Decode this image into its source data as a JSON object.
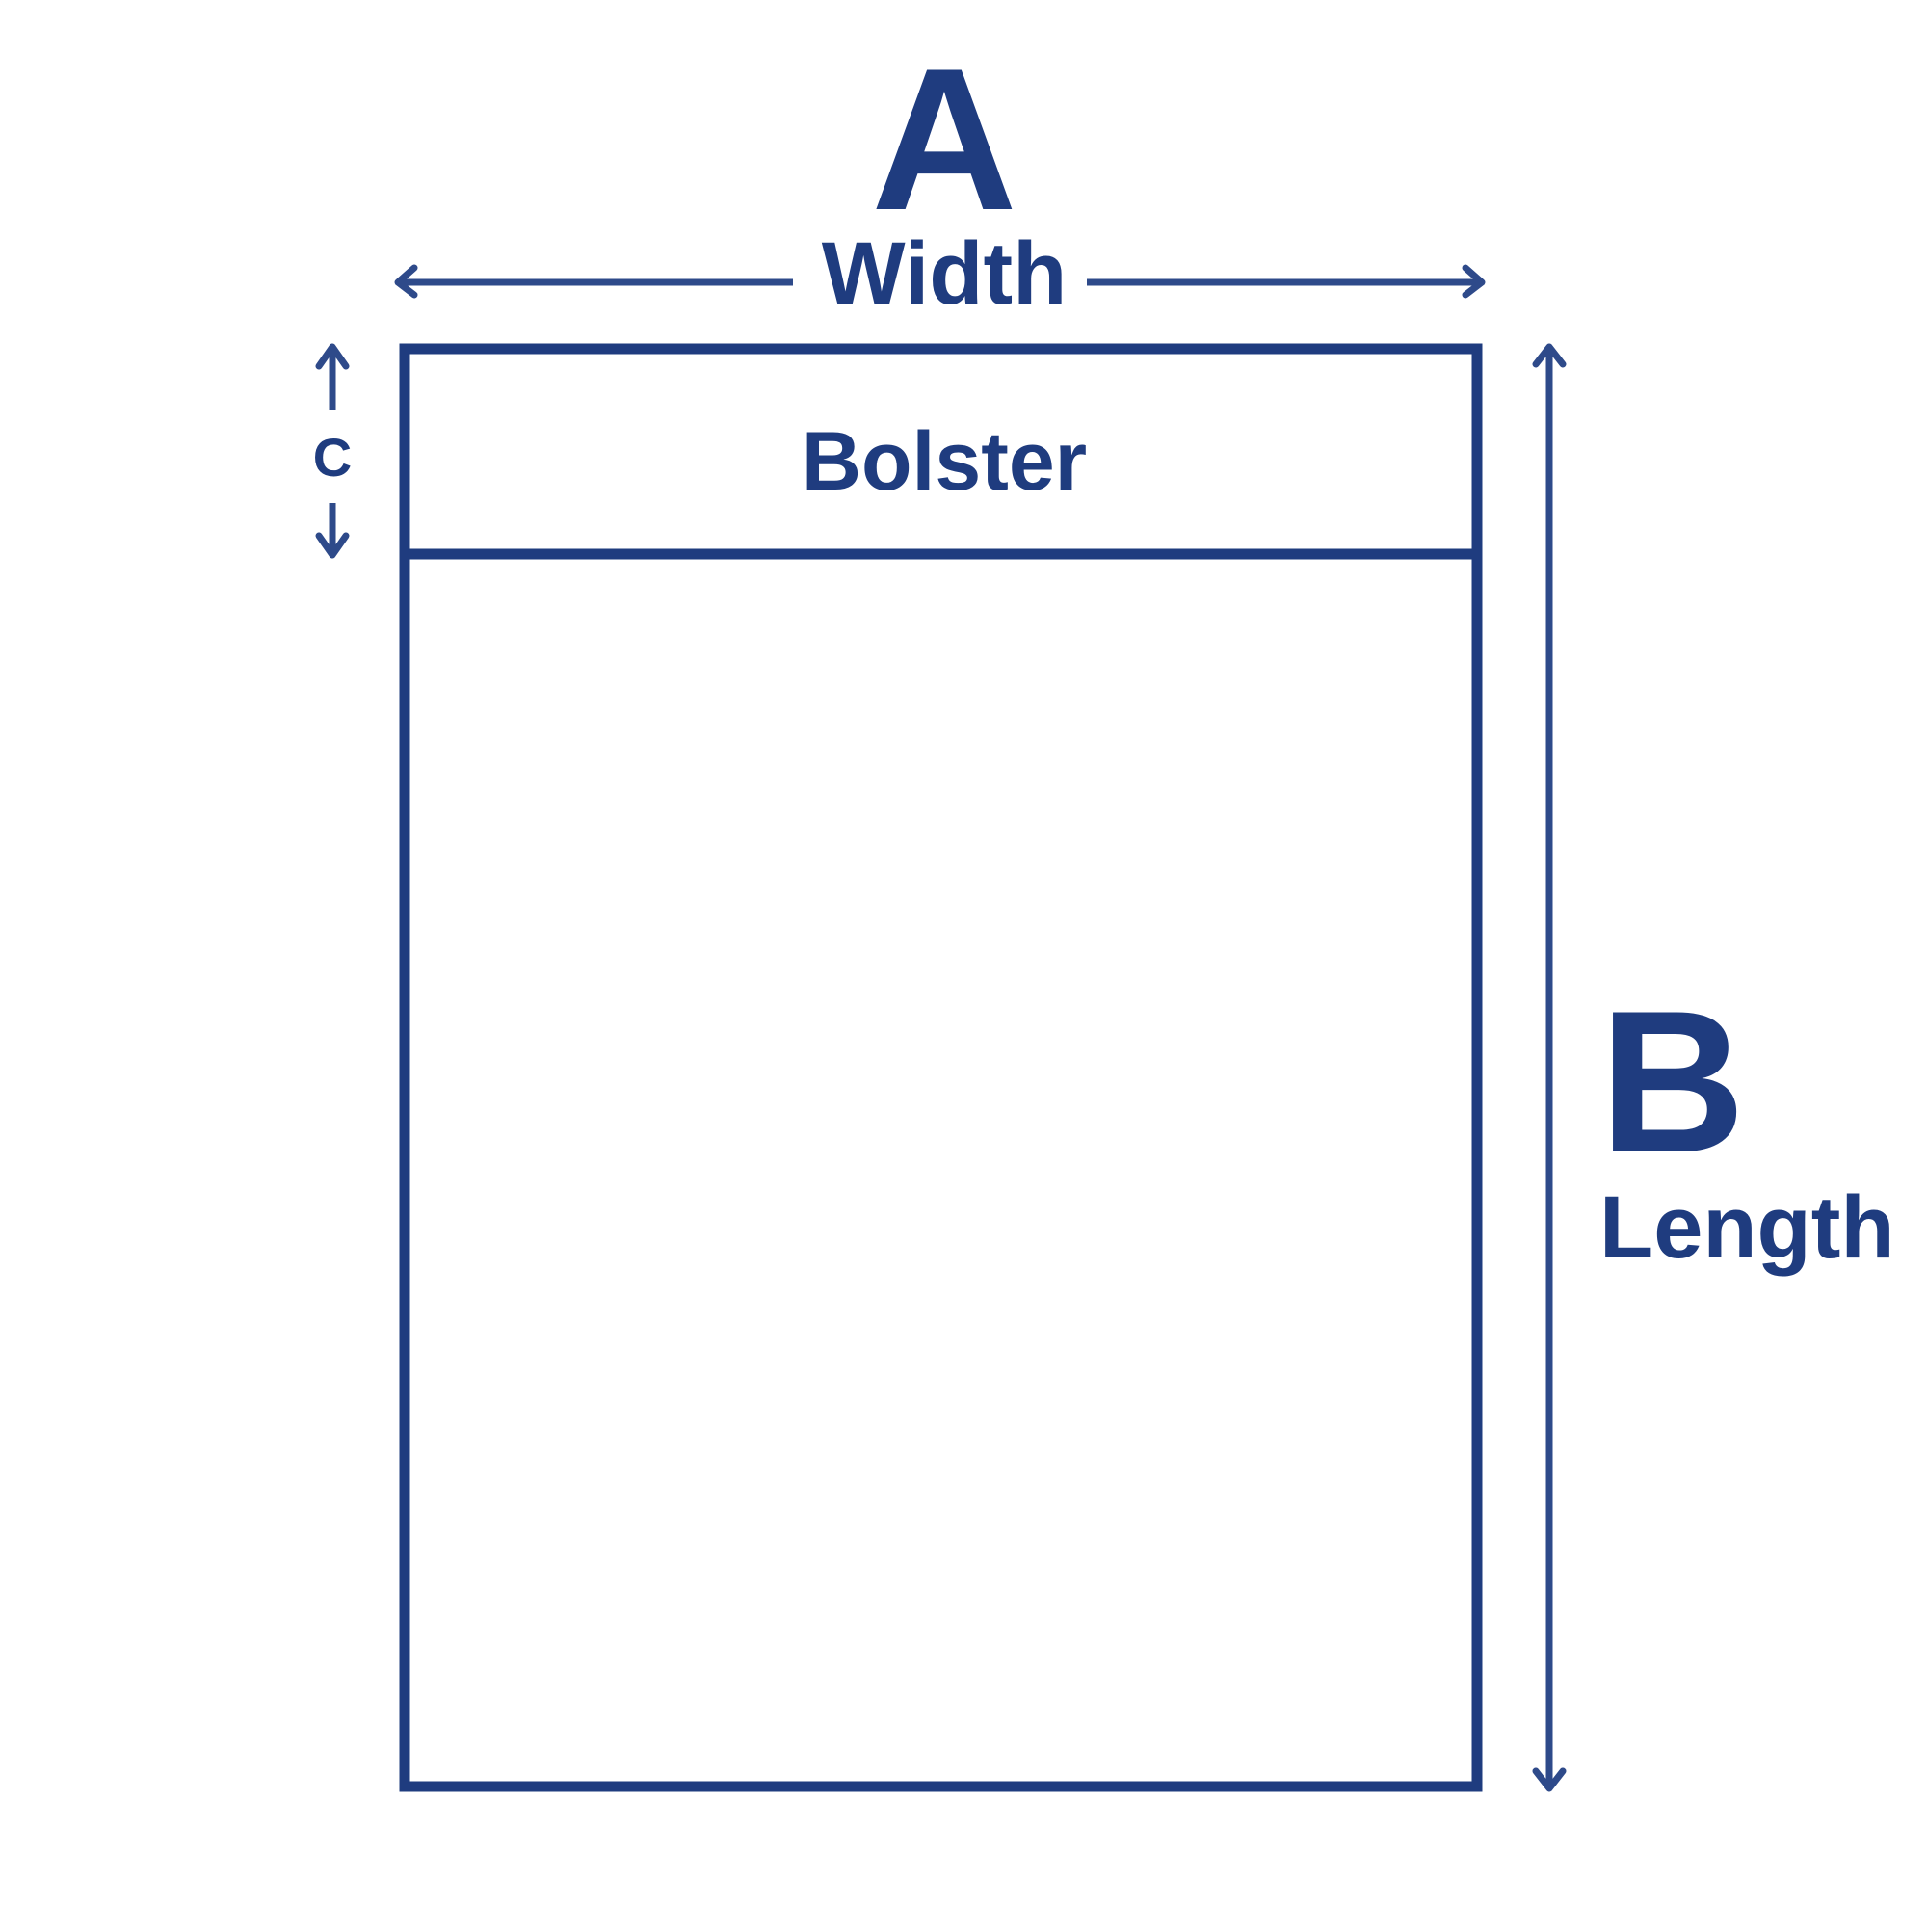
{
  "diagram": {
    "accent_color": "#1f3c7f",
    "arrow_color": "#2e4a8a",
    "labels": {
      "a": "A",
      "width": "Width",
      "bolster": "Bolster",
      "c": "C",
      "b": "B",
      "length": "Length"
    },
    "shapes": {
      "outer": "rectangle",
      "divider": "horizontal-line",
      "arrows": [
        "width-arrow",
        "c-arrow-up",
        "c-arrow-down",
        "length-arrow"
      ]
    }
  }
}
